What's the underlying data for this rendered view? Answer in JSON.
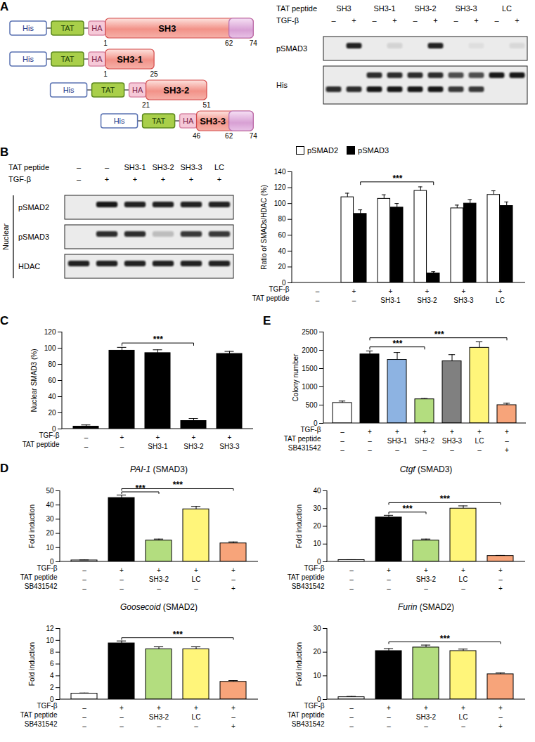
{
  "panel_labels": [
    "A",
    "B",
    "C",
    "D",
    "E"
  ],
  "diagram": {
    "tags": [
      "His",
      "TAT",
      "HA"
    ],
    "tail": [
      62,
      74
    ],
    "constructs": [
      {
        "name": "SH3",
        "start": 1,
        "end": 74,
        "labels": [
          1,
          62,
          74
        ]
      },
      {
        "name": "SH3-1",
        "start": 1,
        "end": 25,
        "labels": [
          1,
          25
        ]
      },
      {
        "name": "SH3-2",
        "start": 21,
        "end": 51,
        "labels": [
          21,
          51
        ]
      },
      {
        "name": "SH3-3",
        "start": 46,
        "end": 74,
        "labels": [
          46,
          62,
          74
        ]
      }
    ]
  },
  "blots": [
    {
      "headers": [
        {
          "label": "TAT peptide",
          "values": [
            "SH3",
            "SH3-1",
            "SH3-2",
            "SH3-3",
            "LC"
          ]
        },
        {
          "label": "TGF-β",
          "values": [
            "–",
            "+",
            "–",
            "+",
            "–",
            "+",
            "–",
            "+",
            "–",
            "+"
          ]
        }
      ],
      "rows": [
        {
          "label": "pSMAD3",
          "bands": [
            [
              0,
              0.9,
              0,
              0.1,
              0,
              0.9,
              0,
              0.05,
              0,
              0.08
            ]
          ]
        },
        {
          "label": "His",
          "bands": [
            [
              0,
              0,
              0.85,
              0.85,
              0.85,
              0.85,
              0.7,
              0.7,
              0.95,
              0.95
            ],
            [
              0.85,
              0.85,
              0.95,
              0.95,
              0.95,
              0.95,
              0.8,
              0.8,
              0,
              0
            ]
          ]
        }
      ]
    },
    {
      "side_label": "Nuclear",
      "headers": [
        {
          "label": "TAT peptide",
          "values": [
            "–",
            "–",
            "SH3-1",
            "SH3-2",
            "SH3-3",
            "LC"
          ]
        },
        {
          "label": "TGF-β",
          "values": [
            "–",
            "+",
            "+",
            "+",
            "+",
            "+"
          ]
        }
      ],
      "rows": [
        {
          "label": "pSMAD2",
          "bands": [
            [
              0,
              0.95,
              0.9,
              0.9,
              0.9,
              0.9
            ]
          ]
        },
        {
          "label": "pSMAD3",
          "bands": [
            [
              0,
              0.85,
              0.85,
              0.2,
              0.8,
              0.8
            ]
          ]
        },
        {
          "label": "HDAC",
          "bands": [
            [
              0.9,
              0.9,
              0.9,
              0.9,
              0.9,
              0.9
            ]
          ]
        }
      ]
    }
  ],
  "chart_data": [
    {
      "type": "bar",
      "y_label": "Ratio of SMADs/HDAC (%)",
      "categories": [
        null,
        null,
        null,
        null,
        null,
        null
      ],
      "x_rows": [
        {
          "label": "TGF-β",
          "values": [
            "–",
            "+",
            "+",
            "+",
            "+",
            "+"
          ]
        },
        {
          "label": "TAT peptide",
          "values": [
            "–",
            "–",
            "SH3-1",
            "SH3-2",
            "SH3-3",
            "LC"
          ]
        }
      ],
      "series": [
        {
          "name": "pSMAD2",
          "color": "#ffffff",
          "values": [
            0,
            108,
            106,
            116,
            94,
            111
          ],
          "errors": [
            0,
            5,
            5,
            5,
            4,
            5
          ]
        },
        {
          "name": "pSMAD3",
          "color": "#000000",
          "values": [
            0,
            87,
            95,
            12,
            100,
            97
          ],
          "errors": [
            0,
            5,
            5,
            2,
            5,
            5
          ]
        }
      ],
      "ylim": [
        0,
        140
      ],
      "yticks": [
        0,
        20,
        40,
        60,
        80,
        100,
        120,
        140
      ],
      "legend": "top-left",
      "tick_labels": "y",
      "annotations": [
        {
          "text": "***",
          "between": [
            1,
            3
          ],
          "series": "pSMAD3"
        }
      ]
    },
    {
      "type": "bar",
      "y_label": "Nuclear SMAD3 (%)",
      "categories": [
        null,
        null,
        null,
        null,
        null
      ],
      "x_rows": [
        {
          "label": "TGF-β",
          "values": [
            "–",
            "+",
            "+",
            "+",
            "+"
          ]
        },
        {
          "label": "TAT peptide",
          "values": [
            "–",
            "–",
            "SH3-1",
            "SH3-2",
            "SH3-3"
          ]
        }
      ],
      "values": [
        3,
        97,
        94,
        10,
        93
      ],
      "errors": [
        2,
        4,
        4,
        3,
        3
      ],
      "color": "#000000",
      "ylim": [
        0,
        120
      ],
      "yticks": [
        0,
        20,
        40,
        60,
        80,
        100,
        120
      ],
      "tick_labels": "y",
      "annotations": [
        {
          "text": "***",
          "between": [
            1,
            3
          ]
        }
      ]
    },
    {
      "type": "bar",
      "y_label": "Colony number",
      "categories": [
        null,
        null,
        null,
        null,
        null,
        null,
        null
      ],
      "x_rows": [
        {
          "label": "TGF-β",
          "values": [
            "–",
            "+",
            "+",
            "+",
            "+",
            "+",
            "+"
          ]
        },
        {
          "label": "TAT peptide",
          "values": [
            "–",
            "–",
            "SH3-1",
            "SH3-2",
            "SH3-3",
            "LC",
            "–"
          ]
        },
        {
          "label": "SB431542",
          "values": [
            "–",
            "–",
            "–",
            "–",
            "–",
            "–",
            "+"
          ]
        }
      ],
      "values": [
        560,
        1890,
        1740,
        660,
        1700,
        2070,
        500
      ],
      "errors": [
        50,
        90,
        200,
        20,
        180,
        160,
        50
      ],
      "colors": [
        "#ffffff",
        "#000000",
        "#8db3e2",
        "#b3dd7f",
        "#808080",
        "#fff57a",
        "#f7a47a"
      ],
      "ylim": [
        0,
        2500
      ],
      "yticks": [
        0,
        500,
        1000,
        1500,
        2000,
        2500
      ],
      "tick_labels": "y",
      "annotations": [
        {
          "text": "***",
          "between": [
            1,
            3
          ]
        },
        {
          "text": "***",
          "between": [
            1,
            6
          ]
        }
      ]
    },
    {
      "type": "bar",
      "title": "PAI-1 (SMAD3)",
      "y_label": "Fold induction",
      "categories": [
        null,
        null,
        null,
        null,
        null
      ],
      "x_rows": [
        {
          "label": "TGF-β",
          "values": [
            "–",
            "+",
            "+",
            "+",
            "+"
          ]
        },
        {
          "label": "TAT peptide",
          "values": [
            "–",
            "–",
            "SH3-2",
            "LC",
            "–"
          ]
        },
        {
          "label": "SB431542",
          "values": [
            "–",
            "–",
            "–",
            "–",
            "+"
          ]
        }
      ],
      "values": [
        1,
        45,
        15,
        37,
        13
      ],
      "errors": [
        0.3,
        2,
        1,
        2,
        1
      ],
      "colors": [
        "#ffffff",
        "#000000",
        "#b3dd7f",
        "#fff57a",
        "#f7a47a"
      ],
      "ylim": [
        0,
        50
      ],
      "yticks": [
        0,
        10,
        20,
        30,
        40,
        50
      ],
      "tick_labels": "y",
      "annotations": [
        {
          "text": "***",
          "between": [
            1,
            2
          ]
        },
        {
          "text": "***",
          "between": [
            1,
            4
          ]
        }
      ]
    },
    {
      "type": "bar",
      "title": "Ctgf (SMAD3)",
      "y_label": "Fold induction",
      "categories": [
        null,
        null,
        null,
        null,
        null
      ],
      "x_rows": [
        {
          "label": "TGF-β",
          "values": [
            "–",
            "+",
            "+",
            "+",
            "+"
          ]
        },
        {
          "label": "TAT peptide",
          "values": [
            "–",
            "–",
            "SH3-2",
            "LC",
            "–"
          ]
        },
        {
          "label": "SB431542",
          "values": [
            "–",
            "–",
            "–",
            "–",
            "+"
          ]
        }
      ],
      "values": [
        1,
        25,
        12,
        30,
        3.3
      ],
      "errors": [
        0.2,
        1.2,
        0.8,
        1.5,
        0.3
      ],
      "colors": [
        "#ffffff",
        "#000000",
        "#b3dd7f",
        "#fff57a",
        "#f7a47a"
      ],
      "ylim": [
        0,
        40
      ],
      "yticks": [
        0,
        10,
        20,
        30,
        40
      ],
      "tick_labels": "y",
      "annotations": [
        {
          "text": "***",
          "between": [
            1,
            2
          ]
        },
        {
          "text": "***",
          "between": [
            1,
            4
          ]
        }
      ]
    },
    {
      "type": "bar",
      "title": "Goosecoid (SMAD2)",
      "y_label": "Fold induction",
      "categories": [
        null,
        null,
        null,
        null,
        null
      ],
      "x_rows": [
        {
          "label": "TGF-β",
          "values": [
            "–",
            "+",
            "+",
            "+",
            "+"
          ]
        },
        {
          "label": "TAT peptide",
          "values": [
            "–",
            "–",
            "SH3-2",
            "LC",
            "–"
          ]
        },
        {
          "label": "SB431542",
          "values": [
            "–",
            "–",
            "–",
            "–",
            "+"
          ]
        }
      ],
      "values": [
        1,
        9.5,
        8.5,
        8.5,
        3
      ],
      "errors": [
        0.1,
        0.4,
        0.4,
        0.4,
        0.2
      ],
      "colors": [
        "#ffffff",
        "#000000",
        "#b3dd7f",
        "#fff57a",
        "#f7a47a"
      ],
      "ylim": [
        0,
        12
      ],
      "yticks": [
        0,
        2,
        4,
        6,
        8,
        10,
        12
      ],
      "tick_labels": "y",
      "annotations": [
        {
          "text": "***",
          "between": [
            1,
            4
          ]
        }
      ]
    },
    {
      "type": "bar",
      "title": "Furin (SMAD2)",
      "y_label": "Fold induction",
      "categories": [
        null,
        null,
        null,
        null,
        null
      ],
      "x_rows": [
        {
          "label": "TGF-β",
          "values": [
            "–",
            "+",
            "+",
            "+",
            "+"
          ]
        },
        {
          "label": "TAT peptide",
          "values": [
            "–",
            "–",
            "SH3-2",
            "LC",
            "–"
          ]
        },
        {
          "label": "SB431542",
          "values": [
            "–",
            "–",
            "–",
            "–",
            "+"
          ]
        }
      ],
      "values": [
        1,
        20.5,
        22,
        20.5,
        10.7
      ],
      "errors": [
        0.3,
        1,
        1,
        0.8,
        0.5
      ],
      "colors": [
        "#ffffff",
        "#000000",
        "#b3dd7f",
        "#fff57a",
        "#f7a47a"
      ],
      "ylim": [
        0,
        30
      ],
      "yticks": [
        0,
        10,
        20,
        30
      ],
      "tick_labels": "y",
      "annotations": [
        {
          "text": "***",
          "between": [
            1,
            4
          ]
        }
      ]
    }
  ]
}
